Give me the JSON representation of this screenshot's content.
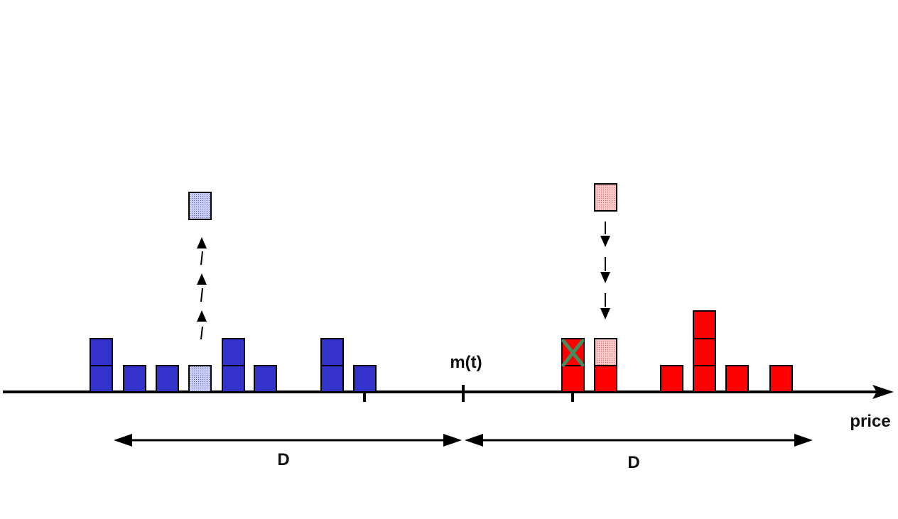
{
  "labels": {
    "price_axis": "price",
    "mid_price": "m(t)",
    "left_span": "D",
    "right_span": "D"
  },
  "colors": {
    "bid": "#3333cc",
    "bid_pending": "#aab0e8",
    "ask": "#ff0000",
    "ask_pending": "#f4a6a6",
    "cancel_mark": "#3e8e5e",
    "axis": "#000000"
  },
  "diagram": {
    "bid_stacks": [
      2,
      1,
      1,
      1,
      2,
      1,
      0,
      2,
      1
    ],
    "bid_pending_stack_index": 3,
    "ask_stacks": [
      2,
      2,
      0,
      1,
      3,
      1,
      0,
      1
    ],
    "ask_pending_stack_index": 1,
    "cancelled_ask_stack_index": 0,
    "bid_move_direction": "up",
    "ask_move_direction": "down"
  }
}
